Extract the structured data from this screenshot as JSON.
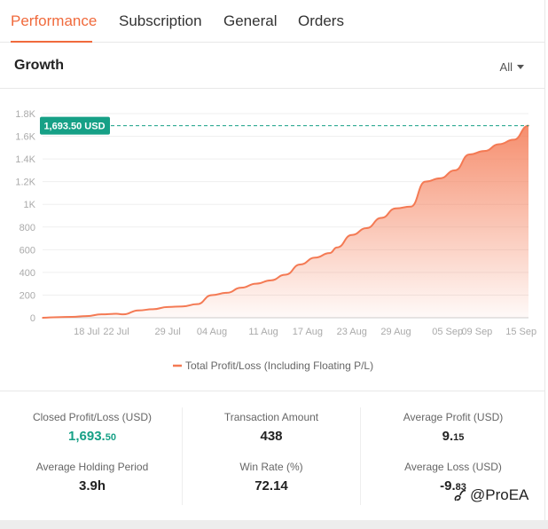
{
  "tabs": [
    {
      "label": "Performance",
      "active": true
    },
    {
      "label": "Subscription",
      "active": false
    },
    {
      "label": "General",
      "active": false
    },
    {
      "label": "Orders",
      "active": false
    }
  ],
  "card": {
    "title": "Growth",
    "range_label": "All"
  },
  "chart_data": {
    "type": "area",
    "title": "",
    "xlabel": "",
    "ylabel": "",
    "ylim": [
      0,
      1800
    ],
    "yticks": [
      0,
      200,
      400,
      600,
      800,
      1000,
      1200,
      1400,
      1600,
      1800
    ],
    "ytick_labels": [
      "0",
      "200",
      "400",
      "600",
      "800",
      "1K",
      "1.2K",
      "1.4K",
      "1.6K",
      "1.8K"
    ],
    "xtick_labels": [
      "18 Jul",
      "22 Jul",
      "29 Jul",
      "04 Aug",
      "11 Aug",
      "17 Aug",
      "23 Aug",
      "29 Aug",
      "05 Sep",
      "09 Sep",
      "15 Sep"
    ],
    "xrange": [
      "12 Jul",
      "16 Sep"
    ],
    "legend": "bottom",
    "grid": true,
    "color": "#f47a54",
    "max_marker_label": "1,693.50 USD",
    "max_value": 1693.5,
    "series": [
      {
        "name": "Total Profit/Loss (Including Floating P/L)",
        "points": [
          [
            "12 Jul",
            0
          ],
          [
            "14 Jul",
            5
          ],
          [
            "16 Jul",
            8
          ],
          [
            "18 Jul",
            15
          ],
          [
            "20 Jul",
            30
          ],
          [
            "22 Jul",
            35
          ],
          [
            "23 Jul",
            30
          ],
          [
            "25 Jul",
            65
          ],
          [
            "27 Jul",
            75
          ],
          [
            "29 Jul",
            95
          ],
          [
            "31 Jul",
            100
          ],
          [
            "02 Aug",
            120
          ],
          [
            "04 Aug",
            200
          ],
          [
            "06 Aug",
            220
          ],
          [
            "08 Aug",
            265
          ],
          [
            "10 Aug",
            300
          ],
          [
            "12 Aug",
            330
          ],
          [
            "14 Aug",
            380
          ],
          [
            "16 Aug",
            470
          ],
          [
            "18 Aug",
            530
          ],
          [
            "20 Aug",
            570
          ],
          [
            "21 Aug",
            620
          ],
          [
            "23 Aug",
            730
          ],
          [
            "25 Aug",
            790
          ],
          [
            "27 Aug",
            880
          ],
          [
            "29 Aug",
            965
          ],
          [
            "31 Aug",
            980
          ],
          [
            "02 Sep",
            1200
          ],
          [
            "04 Sep",
            1230
          ],
          [
            "06 Sep",
            1300
          ],
          [
            "08 Sep",
            1440
          ],
          [
            "10 Sep",
            1470
          ],
          [
            "12 Sep",
            1530
          ],
          [
            "14 Sep",
            1570
          ],
          [
            "16 Sep",
            1693.5
          ]
        ]
      }
    ]
  },
  "stats": {
    "closed_pl": {
      "label": "Closed Profit/Loss (USD)",
      "int": "1,693.",
      "dec": "50"
    },
    "transaction_amount": {
      "label": "Transaction Amount",
      "value": "438"
    },
    "avg_profit": {
      "label": "Average Profit (USD)",
      "int": "9.",
      "dec": "15"
    },
    "avg_holding": {
      "label": "Average Holding Period",
      "value": "3.9h"
    },
    "win_rate": {
      "label": "Win Rate (%)",
      "value": "72.14"
    },
    "avg_loss": {
      "label": "Average Loss (USD)",
      "int": "-9.",
      "dec": "83"
    }
  },
  "watermark": {
    "text": "@ProEA",
    "icon": "proea-logo-icon"
  }
}
